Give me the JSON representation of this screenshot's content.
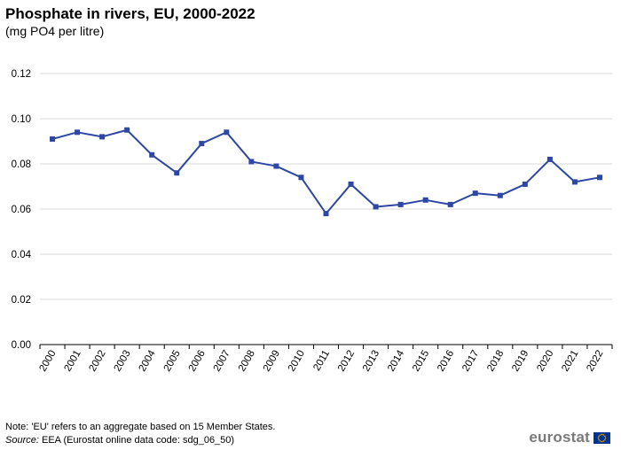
{
  "chart_data": {
    "type": "line",
    "title": "Phosphate in rivers, EU, 2000-2022",
    "subtitle": "(mg PO4 per litre)",
    "x": [
      "2000",
      "2001",
      "2002",
      "2003",
      "2004",
      "2005",
      "2006",
      "2007",
      "2008",
      "2009",
      "2010",
      "2011",
      "2012",
      "2013",
      "2014",
      "2015",
      "2016",
      "2017",
      "2018",
      "2019",
      "2020",
      "2021",
      "2022"
    ],
    "series": [
      {
        "values": [
          0.091,
          0.094,
          0.092,
          0.095,
          0.084,
          0.076,
          0.089,
          0.094,
          0.081,
          0.079,
          0.074,
          0.058,
          0.071,
          0.061,
          0.062,
          0.064,
          0.062,
          0.067,
          0.066,
          0.071,
          0.082,
          0.072,
          0.074
        ],
        "color": "#2e47a4"
      }
    ],
    "ylim": [
      0,
      0.12
    ],
    "yticks": [
      "0.00",
      "0.02",
      "0.04",
      "0.06",
      "0.08",
      "0.10",
      "0.12"
    ],
    "ytick_values": [
      0,
      0.02,
      0.04,
      0.06,
      0.08,
      0.1,
      0.12
    ],
    "grid": true,
    "legend": "none",
    "xlabel": "",
    "ylabel": ""
  },
  "footer": {
    "note": "Note: 'EU' refers to an aggregate based on 15 Member States.",
    "source_label": "Source:",
    "source_text": " EEA (Eurostat online data code: sdg_06_50)"
  },
  "logo": {
    "text": "eurostat"
  },
  "colors": {
    "line": "#2e47a4",
    "grid": "#d9d9d9",
    "logo_flag": "#003399",
    "logo_stars": "#ffcc00"
  }
}
